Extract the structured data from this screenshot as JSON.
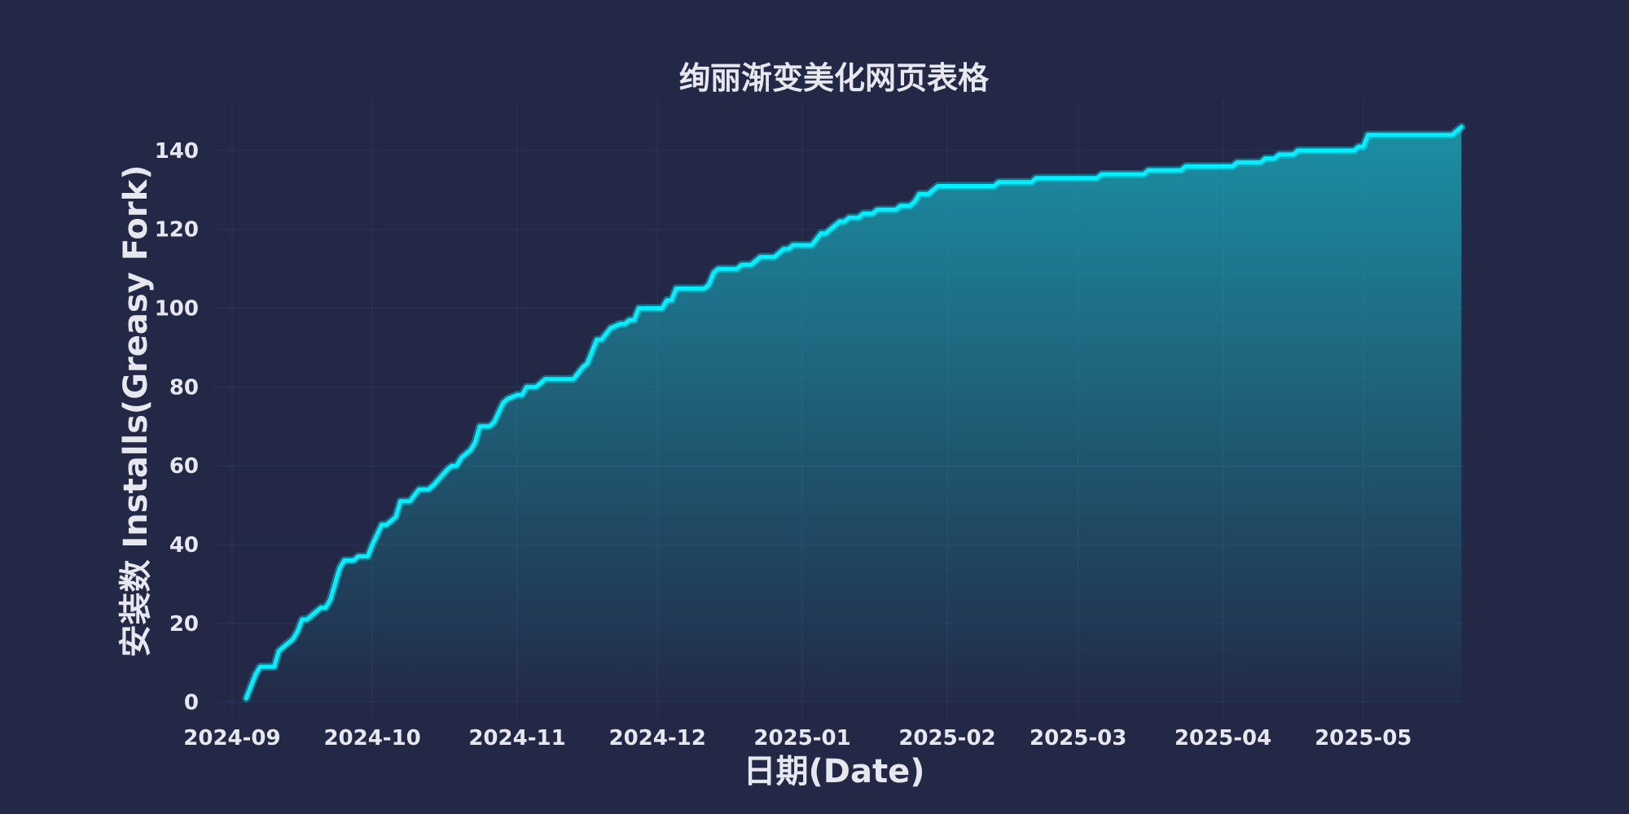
{
  "chart_data": {
    "type": "area",
    "title": "绚丽渐变美化网页表格",
    "xlabel": "日期(Date)",
    "ylabel": "安装数 Installs(Greasy Fork)",
    "xlim": [
      "2024-08-28",
      "2025-05-23"
    ],
    "ylim": [
      -4,
      153
    ],
    "grid": true,
    "colors": {
      "background": "#222845",
      "line": "#00f0ff",
      "fill": "#1aa6b8",
      "text": "#e6e8ee",
      "grid": "#33416a"
    },
    "x_ticks": [
      "2024-09",
      "2024-10",
      "2024-11",
      "2024-12",
      "2025-01",
      "2025-02",
      "2025-03",
      "2025-04",
      "2025-05"
    ],
    "y_ticks": [
      0,
      20,
      40,
      60,
      80,
      100,
      120,
      140
    ],
    "series": [
      {
        "points": [
          [
            "2024-09-04",
            1
          ],
          [
            "2024-09-06",
            7
          ],
          [
            "2024-09-07",
            9
          ],
          [
            "2024-09-10",
            9
          ],
          [
            "2024-09-11",
            13
          ],
          [
            "2024-09-13",
            15
          ],
          [
            "2024-09-14",
            16
          ],
          [
            "2024-09-15",
            18
          ],
          [
            "2024-09-16",
            21
          ],
          [
            "2024-09-17",
            21
          ],
          [
            "2024-09-19",
            23
          ],
          [
            "2024-09-20",
            24
          ],
          [
            "2024-09-21",
            24
          ],
          [
            "2024-09-22",
            26
          ],
          [
            "2024-09-24",
            34
          ],
          [
            "2024-09-25",
            36
          ],
          [
            "2024-09-27",
            36
          ],
          [
            "2024-09-28",
            37
          ],
          [
            "2024-09-30",
            37
          ],
          [
            "2024-10-01",
            40
          ],
          [
            "2024-10-03",
            45
          ],
          [
            "2024-10-04",
            45
          ],
          [
            "2024-10-06",
            47
          ],
          [
            "2024-10-07",
            51
          ],
          [
            "2024-10-09",
            51
          ],
          [
            "2024-10-11",
            54
          ],
          [
            "2024-10-13",
            54
          ],
          [
            "2024-10-14",
            55
          ],
          [
            "2024-10-17",
            59
          ],
          [
            "2024-10-18",
            60
          ],
          [
            "2024-10-19",
            60
          ],
          [
            "2024-10-20",
            62
          ],
          [
            "2024-10-22",
            64
          ],
          [
            "2024-10-23",
            66
          ],
          [
            "2024-10-24",
            70
          ],
          [
            "2024-10-26",
            70
          ],
          [
            "2024-10-27",
            71
          ],
          [
            "2024-10-29",
            76
          ],
          [
            "2024-10-30",
            77
          ],
          [
            "2024-11-01",
            78
          ],
          [
            "2024-11-02",
            78
          ],
          [
            "2024-11-03",
            80
          ],
          [
            "2024-11-05",
            80
          ],
          [
            "2024-11-07",
            82
          ],
          [
            "2024-11-13",
            82
          ],
          [
            "2024-11-15",
            85
          ],
          [
            "2024-11-16",
            86
          ],
          [
            "2024-11-18",
            92
          ],
          [
            "2024-11-19",
            92
          ],
          [
            "2024-11-21",
            95
          ],
          [
            "2024-11-23",
            96
          ],
          [
            "2024-11-24",
            96
          ],
          [
            "2024-11-25",
            97
          ],
          [
            "2024-11-26",
            97
          ],
          [
            "2024-11-27",
            100
          ],
          [
            "2024-12-02",
            100
          ],
          [
            "2024-12-03",
            102
          ],
          [
            "2024-12-04",
            102
          ],
          [
            "2024-12-05",
            105
          ],
          [
            "2024-12-11",
            105
          ],
          [
            "2024-12-12",
            106
          ],
          [
            "2024-12-13",
            109
          ],
          [
            "2024-12-14",
            110
          ],
          [
            "2024-12-18",
            110
          ],
          [
            "2024-12-19",
            111
          ],
          [
            "2024-12-21",
            111
          ],
          [
            "2024-12-23",
            113
          ],
          [
            "2024-12-26",
            113
          ],
          [
            "2024-12-28",
            115
          ],
          [
            "2024-12-29",
            115
          ],
          [
            "2024-12-30",
            116
          ],
          [
            "2025-01-03",
            116
          ],
          [
            "2025-01-05",
            119
          ],
          [
            "2025-01-06",
            119
          ],
          [
            "2025-01-07",
            120
          ],
          [
            "2025-01-09",
            122
          ],
          [
            "2025-01-10",
            122
          ],
          [
            "2025-01-11",
            123
          ],
          [
            "2025-01-13",
            123
          ],
          [
            "2025-01-14",
            124
          ],
          [
            "2025-01-16",
            124
          ],
          [
            "2025-01-17",
            125
          ],
          [
            "2025-01-21",
            125
          ],
          [
            "2025-01-22",
            126
          ],
          [
            "2025-01-24",
            126
          ],
          [
            "2025-01-25",
            127
          ],
          [
            "2025-01-26",
            129
          ],
          [
            "2025-01-28",
            129
          ],
          [
            "2025-01-30",
            131
          ],
          [
            "2025-02-11",
            131
          ],
          [
            "2025-02-12",
            132
          ],
          [
            "2025-02-19",
            132
          ],
          [
            "2025-02-20",
            133
          ],
          [
            "2025-03-05",
            133
          ],
          [
            "2025-03-06",
            134
          ],
          [
            "2025-03-15",
            134
          ],
          [
            "2025-03-16",
            135
          ],
          [
            "2025-03-23",
            135
          ],
          [
            "2025-03-24",
            136
          ],
          [
            "2025-04-03",
            136
          ],
          [
            "2025-04-04",
            137
          ],
          [
            "2025-04-09",
            137
          ],
          [
            "2025-04-10",
            138
          ],
          [
            "2025-04-12",
            138
          ],
          [
            "2025-04-13",
            139
          ],
          [
            "2025-04-16",
            139
          ],
          [
            "2025-04-17",
            140
          ],
          [
            "2025-04-29",
            140
          ],
          [
            "2025-04-30",
            141
          ],
          [
            "2025-05-01",
            141
          ],
          [
            "2025-05-02",
            144
          ],
          [
            "2025-05-20",
            144
          ],
          [
            "2025-05-22",
            146
          ]
        ]
      }
    ]
  }
}
